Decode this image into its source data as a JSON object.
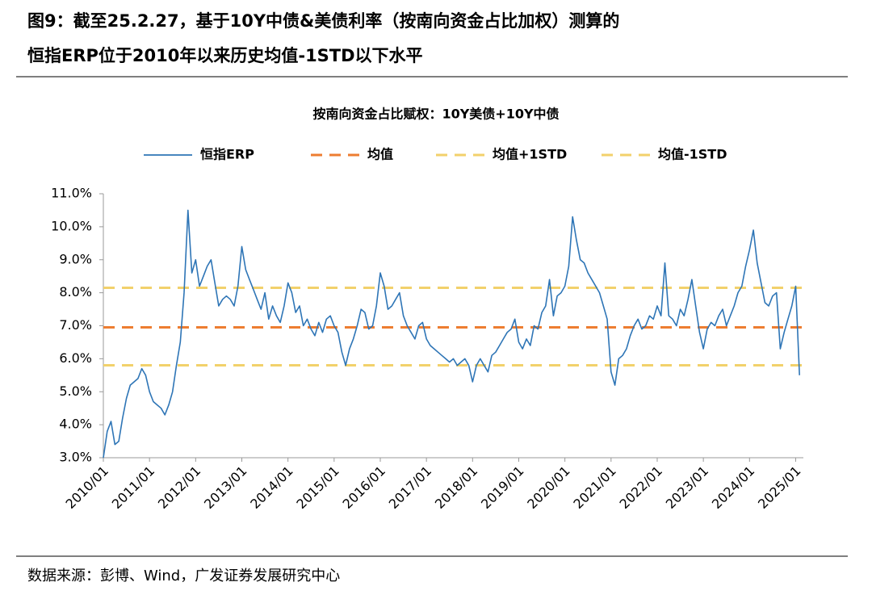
{
  "title_lines": [
    "图9：截至25.2.27，基于10Y中债&美债利率（按南向资金占比加权）测算的",
    "恒指ERP位于2010年以来历史均值-1STD以下水平"
  ],
  "source": "数据来源：彭博、Wind，广发证券发展研究中心",
  "chart_data": {
    "type": "line",
    "title": "按南向资金占比赋权：10Y美债+10Y中债",
    "x": [
      "2010/01",
      "2010/02",
      "2010/03",
      "2010/04",
      "2010/05",
      "2010/06",
      "2010/07",
      "2010/08",
      "2010/09",
      "2010/10",
      "2010/11",
      "2010/12",
      "2011/01",
      "2011/02",
      "2011/03",
      "2011/04",
      "2011/05",
      "2011/06",
      "2011/07",
      "2011/08",
      "2011/09",
      "2011/10",
      "2011/11",
      "2011/12",
      "2012/01",
      "2012/02",
      "2012/03",
      "2012/04",
      "2012/05",
      "2012/06",
      "2012/07",
      "2012/08",
      "2012/09",
      "2012/10",
      "2012/11",
      "2012/12",
      "2013/01",
      "2013/02",
      "2013/03",
      "2013/04",
      "2013/05",
      "2013/06",
      "2013/07",
      "2013/08",
      "2013/09",
      "2013/10",
      "2013/11",
      "2013/12",
      "2014/01",
      "2014/02",
      "2014/03",
      "2014/04",
      "2014/05",
      "2014/06",
      "2014/07",
      "2014/08",
      "2014/09",
      "2014/10",
      "2014/11",
      "2014/12",
      "2015/01",
      "2015/02",
      "2015/03",
      "2015/04",
      "2015/05",
      "2015/06",
      "2015/07",
      "2015/08",
      "2015/09",
      "2015/10",
      "2015/11",
      "2015/12",
      "2016/01",
      "2016/02",
      "2016/03",
      "2016/04",
      "2016/05",
      "2016/06",
      "2016/07",
      "2016/08",
      "2016/09",
      "2016/10",
      "2016/11",
      "2016/12",
      "2017/01",
      "2017/02",
      "2017/03",
      "2017/04",
      "2017/05",
      "2017/06",
      "2017/07",
      "2017/08",
      "2017/09",
      "2017/10",
      "2017/11",
      "2017/12",
      "2018/01",
      "2018/02",
      "2018/03",
      "2018/04",
      "2018/05",
      "2018/06",
      "2018/07",
      "2018/08",
      "2018/09",
      "2018/10",
      "2018/11",
      "2018/12",
      "2019/01",
      "2019/02",
      "2019/03",
      "2019/04",
      "2019/05",
      "2019/06",
      "2019/07",
      "2019/08",
      "2019/09",
      "2019/10",
      "2019/11",
      "2019/12",
      "2020/01",
      "2020/02",
      "2020/03",
      "2020/04",
      "2020/05",
      "2020/06",
      "2020/07",
      "2020/08",
      "2020/09",
      "2020/10",
      "2020/11",
      "2020/12",
      "2021/01",
      "2021/02",
      "2021/03",
      "2021/04",
      "2021/05",
      "2021/06",
      "2021/07",
      "2021/08",
      "2021/09",
      "2021/10",
      "2021/11",
      "2021/12",
      "2022/01",
      "2022/02",
      "2022/03",
      "2022/04",
      "2022/05",
      "2022/06",
      "2022/07",
      "2022/08",
      "2022/09",
      "2022/10",
      "2022/11",
      "2022/12",
      "2023/01",
      "2023/02",
      "2023/03",
      "2023/04",
      "2023/05",
      "2023/06",
      "2023/07",
      "2023/08",
      "2023/09",
      "2023/10",
      "2023/11",
      "2023/12",
      "2024/01",
      "2024/02",
      "2024/03",
      "2024/04",
      "2024/05",
      "2024/06",
      "2024/07",
      "2024/08",
      "2024/09",
      "2024/10",
      "2024/11",
      "2024/12",
      "2025/01",
      "2025/02"
    ],
    "series": [
      {
        "name": "恒指ERP",
        "color": "#2e75b6",
        "values": [
          3.0,
          3.8,
          4.1,
          3.4,
          3.5,
          4.2,
          4.8,
          5.2,
          5.3,
          5.4,
          5.7,
          5.5,
          5.0,
          4.7,
          4.6,
          4.5,
          4.3,
          4.6,
          5.0,
          5.8,
          6.5,
          8.0,
          10.5,
          8.6,
          9.0,
          8.2,
          8.5,
          8.8,
          9.0,
          8.3,
          7.6,
          7.8,
          7.9,
          7.8,
          7.6,
          8.2,
          9.4,
          8.7,
          8.4,
          8.1,
          7.8,
          7.5,
          8.0,
          7.2,
          7.6,
          7.3,
          7.1,
          7.6,
          8.3,
          8.0,
          7.4,
          7.6,
          7.0,
          7.2,
          6.9,
          6.7,
          7.1,
          6.8,
          7.2,
          7.3,
          7.0,
          6.8,
          6.2,
          5.8,
          6.3,
          6.6,
          7.0,
          7.5,
          7.4,
          6.9,
          7.0,
          7.6,
          8.6,
          8.2,
          7.5,
          7.6,
          7.8,
          8.0,
          7.3,
          7.0,
          6.8,
          6.6,
          7.0,
          7.1,
          6.6,
          6.4,
          6.3,
          6.2,
          6.1,
          6.0,
          5.9,
          6.0,
          5.8,
          5.9,
          6.0,
          5.8,
          5.3,
          5.8,
          6.0,
          5.8,
          5.6,
          6.1,
          6.2,
          6.4,
          6.6,
          6.8,
          6.9,
          7.2,
          6.5,
          6.3,
          6.6,
          6.4,
          7.0,
          6.9,
          7.4,
          7.6,
          8.4,
          7.3,
          7.9,
          8.0,
          8.2,
          8.8,
          10.3,
          9.6,
          9.0,
          8.9,
          8.6,
          8.4,
          8.2,
          8.0,
          7.6,
          7.2,
          5.6,
          5.2,
          6.0,
          6.1,
          6.3,
          6.7,
          7.0,
          7.2,
          6.9,
          7.0,
          7.3,
          7.2,
          7.6,
          7.3,
          8.9,
          7.3,
          7.2,
          7.0,
          7.5,
          7.3,
          7.8,
          8.4,
          7.6,
          6.8,
          6.3,
          6.9,
          7.1,
          7.0,
          7.3,
          7.5,
          7.0,
          7.3,
          7.6,
          8.0,
          8.2,
          8.8,
          9.3,
          9.9,
          8.9,
          8.3,
          7.7,
          7.6,
          7.9,
          8.0,
          6.3,
          6.8,
          7.2,
          7.6,
          8.2,
          5.5
        ]
      }
    ],
    "reference_lines": [
      {
        "name": "均值",
        "value": 6.95,
        "color": "#ed7d31"
      },
      {
        "name": "均值+1STD",
        "value": 8.15,
        "color": "#f2d16b"
      },
      {
        "name": "均值-1STD",
        "value": 5.8,
        "color": "#f2d16b"
      }
    ],
    "xlim": [
      "2010/01",
      "2025/03"
    ],
    "xticks": [
      "2010/01",
      "2011/01",
      "2012/01",
      "2013/01",
      "2014/01",
      "2015/01",
      "2016/01",
      "2017/01",
      "2018/01",
      "2019/01",
      "2020/01",
      "2021/01",
      "2022/01",
      "2023/01",
      "2024/01",
      "2025/01"
    ],
    "ylim": [
      3,
      11
    ],
    "yticks": [
      {
        "value": 3,
        "label": "3.0%"
      },
      {
        "value": 4,
        "label": "4.0%"
      },
      {
        "value": 5,
        "label": "5.0%"
      },
      {
        "value": 6,
        "label": "6.0%"
      },
      {
        "value": 7,
        "label": "7.0%"
      },
      {
        "value": 8,
        "label": "8.0%"
      },
      {
        "value": 9,
        "label": "9.0%"
      },
      {
        "value": 10,
        "label": "10.0%"
      },
      {
        "value": 11,
        "label": "11.0%"
      }
    ]
  }
}
